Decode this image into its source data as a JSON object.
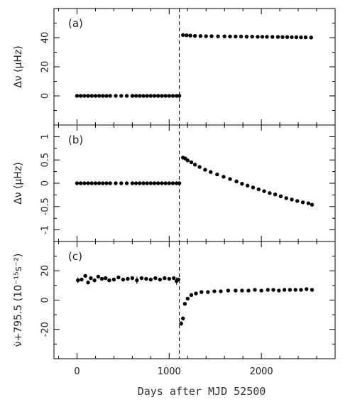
{
  "chart_data": [
    {
      "type": "scatter",
      "panel_label": "(a)",
      "ylabel": "Δν  (μHz)",
      "ylim": [
        -20,
        60
      ],
      "yticks": [
        0,
        20,
        40
      ],
      "xlim": [
        -250,
        2800
      ],
      "xticks": [
        0,
        1000,
        2000
      ],
      "tick_labels_x": [],
      "series": [
        {
          "x": [
            0,
            40,
            80,
            120,
            160,
            200,
            240,
            280,
            320,
            360,
            420,
            480,
            540,
            600,
            640,
            680,
            720,
            760,
            800,
            840,
            880,
            920,
            960,
            1000,
            1040,
            1080,
            1110,
            1150,
            1190,
            1230,
            1280,
            1340,
            1400,
            1460,
            1530,
            1600,
            1660,
            1720,
            1780,
            1840,
            1900,
            1960,
            2010,
            2060,
            2120,
            2180,
            2230,
            2280,
            2330,
            2380,
            2430,
            2480,
            2540
          ],
          "y": [
            0,
            0,
            0,
            0,
            0,
            0,
            0,
            0,
            0,
            0,
            0,
            0,
            0,
            0,
            0,
            0,
            0,
            0,
            0,
            0,
            0,
            0,
            0,
            0,
            0,
            0,
            0,
            41.8,
            41.6,
            41.4,
            41.2,
            41.1,
            41.0,
            41.0,
            40.9,
            40.9,
            40.8,
            40.8,
            40.8,
            40.7,
            40.7,
            40.6,
            40.6,
            40.6,
            40.5,
            40.5,
            40.4,
            40.4,
            40.3,
            40.3,
            40.2,
            40.2,
            40.1
          ]
        }
      ]
    },
    {
      "type": "scatter",
      "panel_label": "(b)",
      "ylabel": "Δν  (μHz)",
      "ylim": [
        -1.25,
        1.25
      ],
      "yticks": [
        -1,
        -0.5,
        0,
        0.5,
        1
      ],
      "xlim": [
        -250,
        2800
      ],
      "xticks": [
        0,
        1000,
        2000
      ],
      "tick_labels_x": [],
      "series": [
        {
          "x": [
            0,
            40,
            80,
            120,
            160,
            200,
            240,
            280,
            320,
            360,
            420,
            480,
            540,
            600,
            640,
            680,
            720,
            760,
            800,
            840,
            880,
            920,
            960,
            1000,
            1040,
            1080,
            1110,
            1150,
            1175,
            1200,
            1240,
            1280,
            1330,
            1390,
            1450,
            1520,
            1590,
            1660,
            1730,
            1790,
            1850,
            1910,
            1970,
            2030,
            2090,
            2150,
            2210,
            2270,
            2330,
            2390,
            2450,
            2510,
            2550
          ],
          "y": [
            0,
            0,
            0,
            0,
            0,
            0,
            0,
            0,
            0,
            0,
            0,
            0,
            0,
            0,
            0,
            0,
            0,
            0,
            0,
            0,
            0,
            0,
            0,
            0,
            0,
            0,
            0,
            0.55,
            0.53,
            0.49,
            0.45,
            0.4,
            0.35,
            0.29,
            0.24,
            0.19,
            0.14,
            0.09,
            0.04,
            -0.01,
            -0.05,
            -0.09,
            -0.13,
            -0.17,
            -0.21,
            -0.24,
            -0.28,
            -0.32,
            -0.35,
            -0.38,
            -0.41,
            -0.43,
            -0.46
          ]
        }
      ]
    },
    {
      "type": "scatter",
      "panel_label": "(c)",
      "ylabel": "ν̇+795.5 (10⁻¹⁵s⁻²)",
      "ylim": [
        -40,
        40
      ],
      "yticks": [
        -20,
        0,
        20
      ],
      "xlim": [
        -250,
        2800
      ],
      "xticks": [
        0,
        1000,
        2000
      ],
      "tick_labels_x": [
        "0",
        "1000",
        "2000"
      ],
      "xlabel": "Days after MJD 52500",
      "series": [
        {
          "x": [
            10,
            50,
            90,
            120,
            150,
            190,
            230,
            270,
            310,
            350,
            400,
            450,
            500,
            550,
            600,
            650,
            700,
            750,
            800,
            850,
            900,
            950,
            1000,
            1050,
            1080,
            1100,
            1130,
            1150,
            1170,
            1200,
            1240,
            1290,
            1350,
            1420,
            1490,
            1560,
            1640,
            1720,
            1790,
            1860,
            1930,
            2000,
            2070,
            2130,
            2190,
            2250,
            2310,
            2370,
            2430,
            2490,
            2550
          ],
          "y": [
            13.5,
            14.0,
            16.5,
            12.0,
            15.0,
            13.5,
            16.0,
            14.5,
            15.0,
            13.5,
            14.0,
            15.5,
            14.0,
            14.5,
            15.0,
            13.5,
            15.0,
            14.5,
            14.0,
            15.0,
            14.0,
            15.0,
            14.5,
            15.0,
            13.0,
            14.0,
            -16.0,
            -12.5,
            -2.5,
            1.0,
            3.5,
            4.5,
            5.5,
            5.5,
            6.0,
            6.0,
            6.5,
            6.5,
            6.5,
            6.5,
            7.0,
            6.5,
            7.0,
            7.0,
            6.5,
            7.0,
            7.0,
            7.0,
            7.0,
            7.5,
            7.0
          ],
          "err": [
            2.0,
            0,
            0,
            0,
            0,
            0,
            0,
            0,
            0,
            0,
            0,
            0,
            0,
            0,
            0,
            2.5,
            0,
            0,
            0,
            0,
            0,
            0,
            0,
            0,
            2.5,
            0,
            1.5,
            0,
            0,
            0,
            0,
            0,
            0,
            0,
            0,
            0,
            0,
            0,
            0,
            0,
            0,
            0,
            0,
            0,
            0,
            0,
            0,
            0,
            0,
            0,
            0
          ]
        }
      ]
    }
  ],
  "glitch_line_x": 1110
}
